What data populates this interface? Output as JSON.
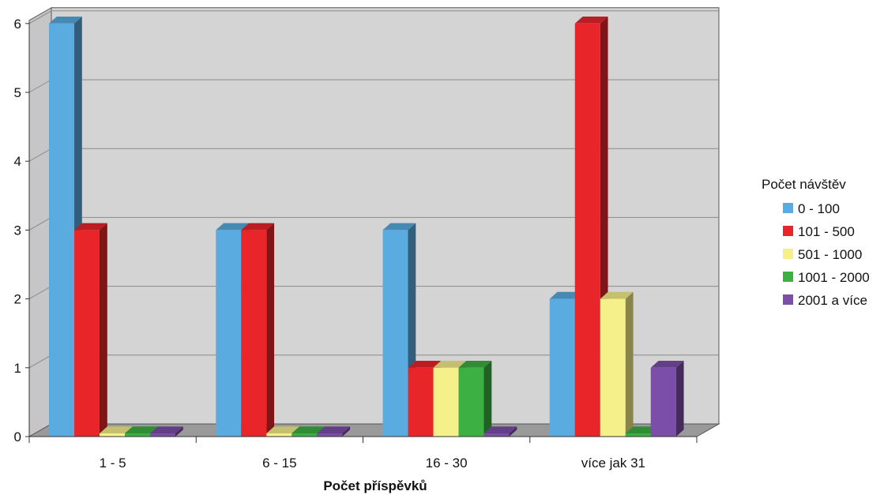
{
  "chart_data": {
    "type": "bar",
    "three_d": true,
    "categories": [
      "1 - 5",
      "6 - 15",
      "16 - 30",
      "více jak 31"
    ],
    "series": [
      {
        "name": "0 - 100",
        "values": [
          6,
          3,
          3,
          2
        ],
        "color": "#5aabe0"
      },
      {
        "name": "101 - 500",
        "values": [
          3,
          3,
          1,
          6
        ],
        "color": "#e8262a"
      },
      {
        "name": "501 - 1000",
        "values": [
          0,
          0,
          1,
          2
        ],
        "color": "#f5f08a"
      },
      {
        "name": "1001 - 2000",
        "values": [
          0,
          0,
          1,
          0
        ],
        "color": "#3cb043"
      },
      {
        "name": "2001 a více",
        "values": [
          0,
          0,
          0,
          1
        ],
        "color": "#7b4fa8"
      }
    ],
    "title": "",
    "xlabel": "Počet příspěvků",
    "ylabel": "",
    "ylim": [
      0,
      6
    ],
    "yticks": [
      "0",
      "1",
      "2",
      "3",
      "4",
      "5",
      "6"
    ],
    "grid": true,
    "legend_title": "Počet návštěv",
    "legend_position": "right",
    "plot_background": "#d4d4d4",
    "floor_color": "#9a9a9a"
  }
}
